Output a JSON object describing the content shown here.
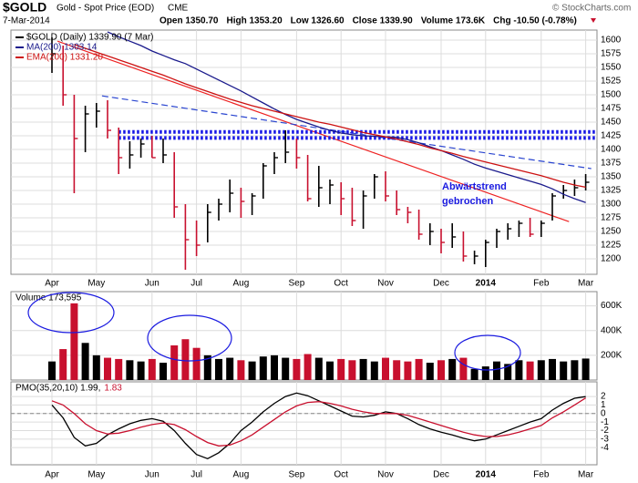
{
  "header": {
    "symbol": "$GOLD",
    "description": "Gold - Spot Price (EOD)",
    "exchange": "CME",
    "date": "7-Mar-2014",
    "copyright": "© StockCharts.com",
    "quote": [
      "Open 1350.70",
      "High 1353.20",
      "Low 1326.60",
      "Close 1339.90",
      "Volume 173.6K",
      "Chg -10.50 (-0.78%)"
    ]
  },
  "chart_data": [
    {
      "type": "ohlc",
      "categories": [
        "Apr",
        null,
        null,
        null,
        "May",
        null,
        null,
        null,
        null,
        "Jun",
        null,
        null,
        null,
        "Jul",
        null,
        null,
        null,
        "Aug",
        null,
        null,
        null,
        null,
        "Sep",
        null,
        null,
        null,
        "Oct",
        null,
        null,
        null,
        "Nov",
        null,
        null,
        null,
        null,
        "Dec",
        null,
        null,
        null,
        "2014",
        null,
        null,
        null,
        null,
        "Feb",
        null,
        null,
        null,
        "Mar"
      ],
      "ylim": [
        1180,
        1615
      ],
      "yticks": [
        1200,
        1225,
        1250,
        1275,
        1300,
        1325,
        1350,
        1375,
        1400,
        1425,
        1450,
        1475,
        1500,
        1525,
        1550,
        1575,
        1600
      ],
      "grid": true,
      "series": [
        {
          "name": "$GOLD (Daily) 1339.90 (7 Mar)",
          "color": "#000000",
          "color_down": "#c8102e",
          "high": [
            1605,
            1590,
            1500,
            1480,
            1485,
            1490,
            1440,
            1415,
            1420,
            1425,
            1420,
            1395,
            1300,
            1270,
            1300,
            1310,
            1345,
            1330,
            1320,
            1375,
            1395,
            1435,
            1420,
            1390,
            1370,
            1345,
            1340,
            1330,
            1325,
            1355,
            1360,
            1325,
            1295,
            1290,
            1265,
            1255,
            1265,
            1250,
            1215,
            1235,
            1255,
            1265,
            1270,
            1275,
            1270,
            1320,
            1335,
            1345,
            1355
          ],
          "low": [
            1540,
            1480,
            1320,
            1395,
            1440,
            1420,
            1355,
            1365,
            1385,
            1385,
            1375,
            1275,
            1180,
            1205,
            1230,
            1270,
            1285,
            1275,
            1280,
            1310,
            1355,
            1375,
            1365,
            1305,
            1295,
            1300,
            1280,
            1260,
            1255,
            1310,
            1305,
            1280,
            1265,
            1235,
            1225,
            1210,
            1220,
            1195,
            1190,
            1185,
            1220,
            1235,
            1240,
            1240,
            1240,
            1270,
            1310,
            1315,
            1325
          ],
          "close": [
            1575,
            1500,
            1420,
            1465,
            1470,
            1435,
            1385,
            1390,
            1410,
            1385,
            1390,
            1295,
            1235,
            1225,
            1285,
            1300,
            1320,
            1305,
            1315,
            1370,
            1385,
            1395,
            1385,
            1310,
            1330,
            1335,
            1310,
            1270,
            1315,
            1350,
            1315,
            1290,
            1285,
            1245,
            1250,
            1230,
            1240,
            1205,
            1205,
            1230,
            1250,
            1255,
            1265,
            1245,
            1265,
            1315,
            1325,
            1330,
            1340
          ]
        },
        {
          "type": "line",
          "name": "MA(200) 1303.14",
          "color": "#1a1a8c",
          "values": [
            null,
            null,
            null,
            null,
            null,
            1615,
            1606,
            1598,
            1590,
            1580,
            1572,
            1564,
            1557,
            1547,
            1537,
            1527,
            1517,
            1507,
            1496,
            1485,
            1474,
            1464,
            1455,
            1448,
            1441,
            1435,
            1430,
            1427,
            1425,
            1424,
            1423,
            1422,
            1418,
            1412,
            1405,
            1398,
            1390,
            1382,
            1373,
            1366,
            1360,
            1354,
            1348,
            1342,
            1336,
            1328,
            1318,
            1310,
            1303
          ]
        },
        {
          "type": "line",
          "name": "EMA(200) 1331.20",
          "color": "#cc1111",
          "values": [
            null,
            null,
            1592,
            1585,
            1578,
            1571,
            1564,
            1557,
            1550,
            1543,
            1536,
            1528,
            1520,
            1513,
            1506,
            1499,
            1492,
            1486,
            1480,
            1475,
            1470,
            1465,
            1460,
            1455,
            1450,
            1446,
            1441,
            1436,
            1431,
            1427,
            1423,
            1419,
            1414,
            1409,
            1403,
            1398,
            1393,
            1387,
            1382,
            1377,
            1372,
            1367,
            1362,
            1357,
            1352,
            1346,
            1340,
            1335,
            1331
          ]
        }
      ],
      "trendlines": [
        {
          "color": "#ee2222",
          "style": "solid",
          "x": [
            0.5,
            46.5
          ],
          "y": [
            1598,
            1268
          ]
        },
        {
          "color": "#2a45d0",
          "style": "dashed",
          "x": [
            4.5,
            48.5
          ],
          "y": [
            1498,
            1365
          ]
        },
        {
          "color": "#1414e6",
          "style": "dotted",
          "x": [
            6,
            49
          ],
          "y": [
            1432,
            1432
          ]
        },
        {
          "color": "#1414e6",
          "style": "dotted",
          "x": [
            6,
            49
          ],
          "y": [
            1421,
            1421
          ]
        }
      ],
      "annotation": [
        "Abwärtstrend",
        "gebrochen"
      ]
    },
    {
      "type": "bar",
      "name": "Volume 173,595",
      "ylim": [
        0,
        700000
      ],
      "yticks": [
        {
          "value": 200000,
          "label": "200K"
        },
        {
          "value": 400000,
          "label": "400K"
        },
        {
          "value": 600000,
          "label": "600K"
        }
      ],
      "grid": true,
      "values": [
        150000,
        250000,
        620000,
        300000,
        200000,
        180000,
        170000,
        160000,
        150000,
        170000,
        140000,
        280000,
        330000,
        260000,
        200000,
        170000,
        180000,
        160000,
        150000,
        190000,
        200000,
        180000,
        170000,
        210000,
        180000,
        150000,
        170000,
        160000,
        170000,
        150000,
        180000,
        160000,
        150000,
        170000,
        140000,
        160000,
        170000,
        180000,
        90000,
        110000,
        150000,
        130000,
        160000,
        150000,
        160000,
        170000,
        150000,
        160000,
        173595
      ]
    },
    {
      "type": "line",
      "categories": [
        "Apr",
        null,
        null,
        null,
        "May",
        null,
        null,
        null,
        null,
        "Jun",
        null,
        null,
        null,
        "Jul",
        null,
        null,
        null,
        "Aug",
        null,
        null,
        null,
        null,
        "Sep",
        null,
        null,
        null,
        "Oct",
        null,
        null,
        null,
        "Nov",
        null,
        null,
        null,
        null,
        "Dec",
        null,
        null,
        null,
        "2014",
        null,
        null,
        null,
        null,
        "Feb",
        null,
        null,
        null,
        "Mar"
      ],
      "ylim": [
        -5.8,
        3.4
      ],
      "yticks": [
        -4,
        -3,
        -2,
        -1,
        0,
        1,
        2
      ],
      "grid": true,
      "zero_line": true,
      "series": [
        {
          "name": "PMO(35,20,10) 1.99,",
          "color": "#000000",
          "values": [
            1.0,
            -0.5,
            -2.8,
            -3.8,
            -3.5,
            -2.5,
            -1.8,
            -1.2,
            -0.8,
            -0.6,
            -0.9,
            -2.0,
            -3.5,
            -4.8,
            -5.3,
            -4.6,
            -3.5,
            -2.0,
            -1.0,
            0.2,
            1.2,
            2.0,
            2.4,
            2.1,
            1.5,
            0.9,
            0.3,
            -0.3,
            -0.4,
            -0.2,
            0.2,
            0.0,
            -0.6,
            -1.3,
            -1.8,
            -2.2,
            -2.5,
            -2.9,
            -3.2,
            -3.0,
            -2.5,
            -2.0,
            -1.5,
            -1.0,
            -0.6,
            0.4,
            1.2,
            1.8,
            1.99
          ]
        },
        {
          "name": "1.83",
          "color": "#c8102e",
          "values": [
            1.5,
            1.0,
            0.0,
            -1.2,
            -2.0,
            -2.4,
            -2.3,
            -2.0,
            -1.6,
            -1.3,
            -1.1,
            -1.3,
            -1.9,
            -2.7,
            -3.4,
            -3.8,
            -3.7,
            -3.2,
            -2.5,
            -1.6,
            -0.7,
            0.2,
            0.9,
            1.3,
            1.4,
            1.2,
            0.9,
            0.5,
            0.2,
            0.0,
            0.0,
            0.0,
            -0.2,
            -0.6,
            -1.0,
            -1.4,
            -1.8,
            -2.2,
            -2.5,
            -2.7,
            -2.7,
            -2.5,
            -2.2,
            -1.8,
            -1.4,
            -0.5,
            0.2,
            1.0,
            1.83
          ]
        }
      ]
    }
  ]
}
